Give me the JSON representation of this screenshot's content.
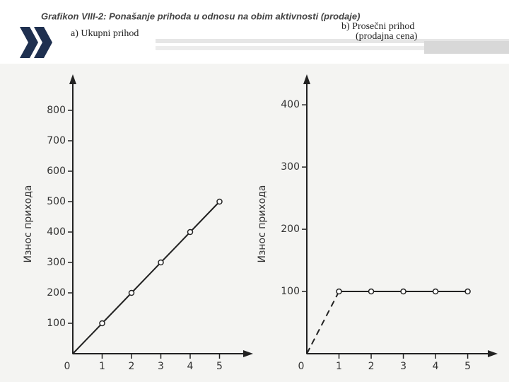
{
  "title": "Grafikon VIII-2: Ponašanje prihoda u odnosu na obim aktivnosti (prodaje)",
  "chart_data": [
    {
      "type": "line",
      "subtitle": [
        "a) Ukupni prihod"
      ],
      "y_label": "Износ прихода",
      "x": [
        0,
        1,
        2,
        3,
        4,
        5
      ],
      "values": [
        0,
        100,
        200,
        300,
        400,
        500
      ],
      "color": "#222222",
      "xlim": [
        0,
        6
      ],
      "xticks": [
        0,
        1,
        2,
        3,
        4,
        5
      ],
      "ylim": [
        0,
        900
      ],
      "yticks": [
        100,
        200,
        300,
        400,
        500,
        600,
        700,
        800
      ],
      "dash_first_segment": false
    },
    {
      "type": "line",
      "subtitle": [
        "b) Prosečni prihod",
        "(prodajna cena)"
      ],
      "y_label": "Износ прихода",
      "x": [
        0,
        1,
        2,
        3,
        4,
        5
      ],
      "values": [
        0,
        100,
        100,
        100,
        100,
        100
      ],
      "color": "#222222",
      "xlim": [
        0,
        5.8
      ],
      "xticks": [
        0,
        1,
        2,
        3,
        4,
        5
      ],
      "ylim": [
        0,
        440
      ],
      "yticks": [
        100,
        200,
        300,
        400
      ],
      "dash_first_segment": true
    }
  ]
}
